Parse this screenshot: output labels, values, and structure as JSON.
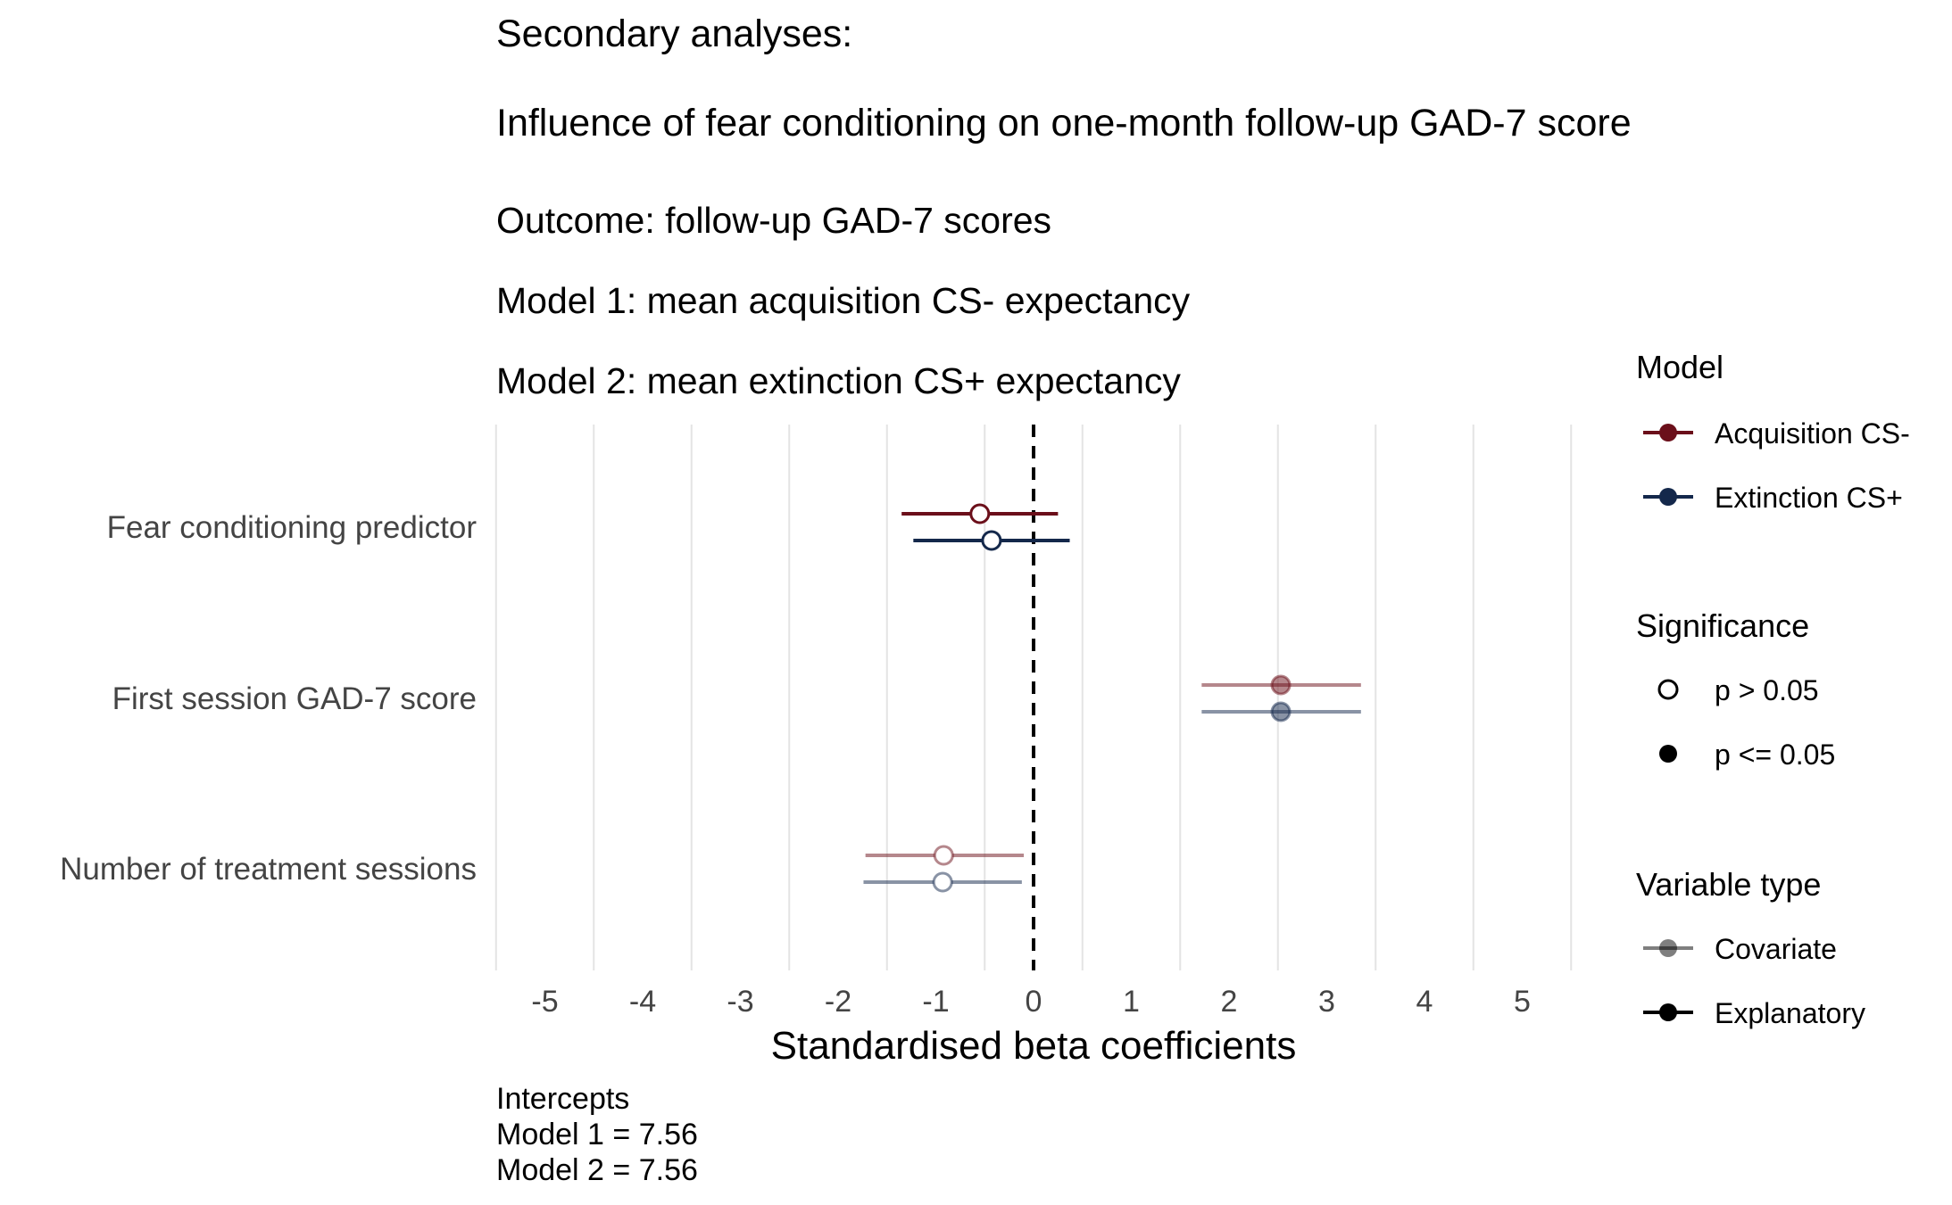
{
  "titles": {
    "line1": "Secondary analyses:",
    "line2": "Influence of fear conditioning on one-month follow-up GAD-7 score",
    "line3": "Outcome: follow-up GAD-7 scores",
    "line4": "Model 1: mean acquisition CS- expectancy",
    "line5": "Model 2: mean extinction CS+ expectancy"
  },
  "caption": {
    "line1": "Intercepts",
    "line2": "Model 1 = 7.56",
    "line3": "Model 2 = 7.56"
  },
  "chart_data": {
    "type": "scatter",
    "subtype": "forest-plot",
    "xlabel": "Standardised beta coefficients",
    "ylabel": "",
    "xlim": [
      -5.5,
      5.5
    ],
    "x_ticks": [
      -5,
      -4,
      -3,
      -2,
      -1,
      0,
      1,
      2,
      3,
      4,
      5
    ],
    "reference_line": 0,
    "grid": "vertical",
    "categories": [
      "Fear conditioning predictor",
      "First session GAD-7 score",
      "Number of treatment sessions"
    ],
    "series": [
      {
        "name": "Acquisition CS-",
        "color": "#6b0f1a",
        "points": [
          {
            "category": "Fear conditioning predictor",
            "estimate": -0.55,
            "lower": -1.35,
            "upper": 0.25,
            "significant": false,
            "variable_type": "Explanatory"
          },
          {
            "category": "First session GAD-7 score",
            "estimate": 2.53,
            "lower": 1.72,
            "upper": 3.35,
            "significant": true,
            "variable_type": "Covariate"
          },
          {
            "category": "Number of treatment sessions",
            "estimate": -0.92,
            "lower": -1.72,
            "upper": -0.1,
            "significant": false,
            "variable_type": "Covariate"
          }
        ]
      },
      {
        "name": "Extinction CS+",
        "color": "#14284b",
        "points": [
          {
            "category": "Fear conditioning predictor",
            "estimate": -0.43,
            "lower": -1.23,
            "upper": 0.37,
            "significant": false,
            "variable_type": "Explanatory"
          },
          {
            "category": "First session GAD-7 score",
            "estimate": 2.53,
            "lower": 1.72,
            "upper": 3.35,
            "significant": true,
            "variable_type": "Covariate"
          },
          {
            "category": "Number of treatment sessions",
            "estimate": -0.93,
            "lower": -1.74,
            "upper": -0.12,
            "significant": false,
            "variable_type": "Covariate"
          }
        ]
      }
    ],
    "legends": [
      {
        "title": "Model",
        "entries": [
          {
            "label": "Acquisition CS-",
            "color": "#6b0f1a",
            "shape": "line-point"
          },
          {
            "label": "Extinction CS+",
            "color": "#14284b",
            "shape": "line-point"
          }
        ]
      },
      {
        "title": "Significance",
        "entries": [
          {
            "label": "p > 0.05",
            "color": "#000000",
            "shape": "open-circle"
          },
          {
            "label": "p <= 0.05",
            "color": "#000000",
            "shape": "filled-circle"
          }
        ]
      },
      {
        "title": "Variable type",
        "entries": [
          {
            "label": "Covariate",
            "color": "#000000",
            "shape": "line-point-faded"
          },
          {
            "label": "Explanatory",
            "color": "#000000",
            "shape": "line-point"
          }
        ]
      }
    ],
    "legend_position": "right"
  }
}
